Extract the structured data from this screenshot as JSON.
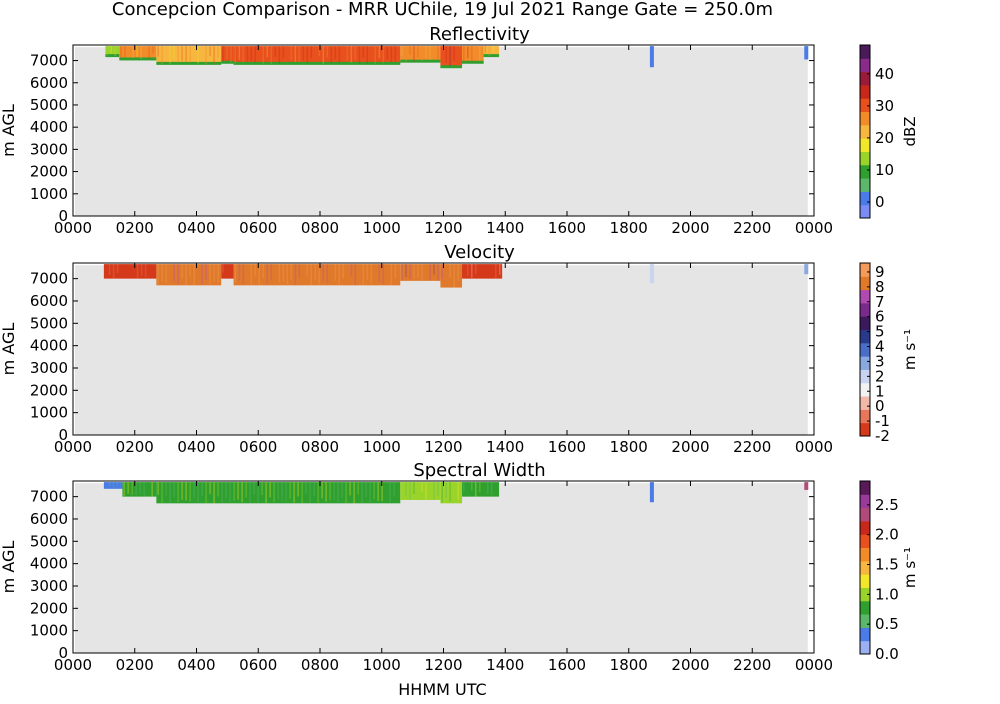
{
  "figure": {
    "suptitle": "Concepcion Comparison - MRR UChile, 19 Jul 2021 Range Gate = 250.0m",
    "xlabel": "HHMM UTC",
    "background_color": "#e5e5e5"
  },
  "chart_data": [
    {
      "type": "heatmap",
      "title": "Reflectivity",
      "ylabel": "m AGL",
      "xlabel": "",
      "x_ticks": [
        "0000",
        "0200",
        "0400",
        "0600",
        "0800",
        "1000",
        "1200",
        "1400",
        "1600",
        "1800",
        "2000",
        "2200",
        "0000"
      ],
      "x_tick_hours": [
        0,
        2,
        4,
        6,
        8,
        10,
        12,
        14,
        16,
        18,
        20,
        22,
        24
      ],
      "xlim_hours": [
        0,
        24
      ],
      "y_ticks": [
        0,
        1000,
        2000,
        3000,
        4000,
        5000,
        6000,
        7000
      ],
      "ylim": [
        0,
        7700
      ],
      "colorbar": {
        "label": "dBZ",
        "ticks": [
          "0",
          "10",
          "20",
          "30",
          "40"
        ],
        "tick_values": [
          0,
          10,
          20,
          30,
          40
        ],
        "range": [
          -5,
          49
        ],
        "colors": [
          "#7b8cf5",
          "#4a7be6",
          "#5bb86a",
          "#2fa02f",
          "#9ad42a",
          "#f2e82a",
          "#f6b640",
          "#f28c2a",
          "#e8501e",
          "#c8281a",
          "#9a1a3a",
          "#8a2a8a",
          "#4a1a5a"
        ]
      },
      "echo": {
        "value": 28,
        "edge_value": 10,
        "top_m": 7650,
        "base_m": 6850,
        "start_h": 1.05,
        "end_h": 13.8,
        "segments": [
          {
            "start_h": 1.05,
            "end_h": 1.5,
            "base_m": 7200,
            "value": 14
          },
          {
            "start_h": 1.5,
            "end_h": 2.7,
            "base_m": 7050,
            "value": 25
          },
          {
            "start_h": 2.7,
            "end_h": 4.8,
            "base_m": 6850,
            "value": 24
          },
          {
            "start_h": 4.8,
            "end_h": 5.2,
            "base_m": 6900,
            "value": 32
          },
          {
            "start_h": 5.2,
            "end_h": 10.6,
            "base_m": 6850,
            "value": 30
          },
          {
            "start_h": 10.6,
            "end_h": 11.9,
            "base_m": 6950,
            "value": 27
          },
          {
            "start_h": 11.9,
            "end_h": 12.6,
            "base_m": 6700,
            "value": 32
          },
          {
            "start_h": 12.6,
            "end_h": 13.3,
            "base_m": 6900,
            "value": 26
          },
          {
            "start_h": 13.3,
            "end_h": 13.8,
            "base_m": 7200,
            "value": 22
          }
        ],
        "isolated": [
          {
            "h": 18.75,
            "base_m": 6700,
            "value": 2
          },
          {
            "h": 23.75,
            "base_m": 7050,
            "value": 2
          }
        ]
      }
    },
    {
      "type": "heatmap",
      "title": "Velocity",
      "ylabel": "m s⁻¹",
      "ylabel_axis": "m AGL",
      "x_ticks": [
        "0000",
        "0200",
        "0400",
        "0600",
        "0800",
        "1000",
        "1200",
        "1400",
        "1600",
        "1800",
        "2000",
        "2200",
        "0000"
      ],
      "x_tick_hours": [
        0,
        2,
        4,
        6,
        8,
        10,
        12,
        14,
        16,
        18,
        20,
        22,
        24
      ],
      "xlim_hours": [
        0,
        24
      ],
      "y_ticks": [
        0,
        1000,
        2000,
        3000,
        4000,
        5000,
        6000,
        7000
      ],
      "ylim": [
        0,
        7700
      ],
      "colorbar": {
        "label": "m s⁻¹",
        "ticks": [
          "-2",
          "-1",
          "0",
          "1",
          "2",
          "3",
          "4",
          "5",
          "6",
          "7",
          "8",
          "9"
        ],
        "tick_values": [
          -2,
          -1,
          0,
          1,
          2,
          3,
          4,
          5,
          6,
          7,
          8,
          9
        ],
        "range": [
          -2,
          9.6
        ],
        "colors": [
          "#d43a1a",
          "#e8765a",
          "#f2b8a8",
          "#f2f2f2",
          "#c8d4f0",
          "#8aa8e0",
          "#4a6ec8",
          "#2a3a8a",
          "#3a1a5a",
          "#7a2a8a",
          "#b04ab0",
          "#e07a2a",
          "#f49a5a"
        ]
      },
      "echo": {
        "value": 8,
        "top_m": 7650,
        "base_m": 6800,
        "start_h": 1.0,
        "end_h": 13.9,
        "segments": [
          {
            "start_h": 1.0,
            "end_h": 2.7,
            "base_m": 7000,
            "value": -1.6
          },
          {
            "start_h": 2.7,
            "end_h": 4.8,
            "base_m": 6700,
            "value": 8.6
          },
          {
            "start_h": 4.8,
            "end_h": 5.2,
            "base_m": 7000,
            "value": -1.6
          },
          {
            "start_h": 5.2,
            "end_h": 10.6,
            "base_m": 6700,
            "value": 8.6
          },
          {
            "start_h": 10.6,
            "end_h": 11.9,
            "base_m": 6900,
            "value": 8.2
          },
          {
            "start_h": 11.9,
            "end_h": 12.6,
            "base_m": 6600,
            "value": 8.6
          },
          {
            "start_h": 12.6,
            "end_h": 13.9,
            "base_m": 7000,
            "value": -1.5
          }
        ],
        "isolated": [
          {
            "h": 18.75,
            "base_m": 6800,
            "value": 2
          },
          {
            "h": 23.75,
            "base_m": 7200,
            "value": 2.5
          }
        ]
      }
    },
    {
      "type": "heatmap",
      "title": "Spectral Width",
      "ylabel": "m s⁻¹",
      "ylabel_axis": "m AGL",
      "x_ticks": [
        "0000",
        "0200",
        "0400",
        "0600",
        "0800",
        "1000",
        "1200",
        "1400",
        "1600",
        "1800",
        "2000",
        "2200",
        "0000"
      ],
      "x_tick_hours": [
        0,
        2,
        4,
        6,
        8,
        10,
        12,
        14,
        16,
        18,
        20,
        22,
        24
      ],
      "xlim_hours": [
        0,
        24
      ],
      "y_ticks": [
        0,
        1000,
        2000,
        3000,
        4000,
        5000,
        6000,
        7000
      ],
      "ylim": [
        0,
        7700
      ],
      "colorbar": {
        "label": "m s⁻¹",
        "ticks": [
          "0.0",
          "0.5",
          "1.0",
          "1.5",
          "2.0",
          "2.5"
        ],
        "tick_values": [
          0,
          0.5,
          1.0,
          1.5,
          2.0,
          2.5
        ],
        "range": [
          0,
          2.9
        ],
        "colors": [
          "#9ab0f2",
          "#4a7be6",
          "#5bb86a",
          "#2fa02f",
          "#9ad42a",
          "#f2e82a",
          "#f6b640",
          "#f28c2a",
          "#e8501e",
          "#c8281a",
          "#b04a7a",
          "#9a3a9a",
          "#5a1a5a"
        ]
      },
      "echo": {
        "value": 0.9,
        "top_m": 7650,
        "base_m": 6750,
        "start_h": 1.0,
        "end_h": 13.8,
        "segments": [
          {
            "start_h": 1.0,
            "end_h": 1.6,
            "base_m": 7350,
            "value": 0.3
          },
          {
            "start_h": 1.6,
            "end_h": 2.7,
            "base_m": 7000,
            "value": 0.85
          },
          {
            "start_h": 2.7,
            "end_h": 10.6,
            "base_m": 6700,
            "value": 0.85
          },
          {
            "start_h": 10.6,
            "end_h": 11.9,
            "base_m": 6850,
            "value": 0.9
          },
          {
            "start_h": 11.9,
            "end_h": 12.6,
            "base_m": 6700,
            "value": 0.95
          },
          {
            "start_h": 12.6,
            "end_h": 13.8,
            "base_m": 7000,
            "value": 0.85
          }
        ],
        "isolated": [
          {
            "h": 18.75,
            "base_m": 6750,
            "value": 0.35
          },
          {
            "h": 23.75,
            "base_m": 7300,
            "value": 2.4
          }
        ]
      }
    }
  ]
}
